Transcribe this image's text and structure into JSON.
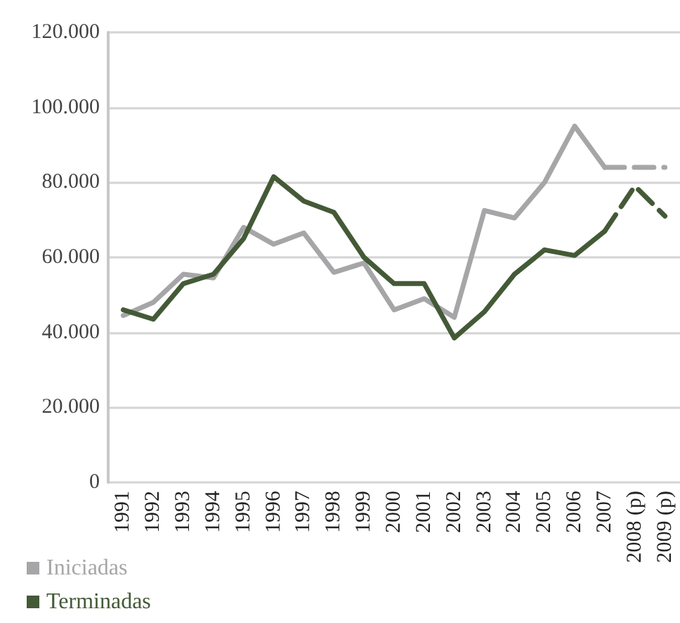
{
  "chart_data": {
    "type": "line",
    "categories": [
      "1991",
      "1992",
      "1993",
      "1994",
      "1995",
      "1996",
      "1997",
      "1998",
      "1999",
      "2000",
      "2001",
      "2002",
      "2003",
      "2004",
      "2005",
      "2006",
      "2007",
      "2008 (p)",
      "2009 (p)"
    ],
    "series": [
      {
        "name": "Iniciadas",
        "color": "#a6a6a8",
        "line_style": "solid",
        "values": [
          44500,
          48000,
          55500,
          54500,
          68000,
          63500,
          66500,
          56000,
          58500,
          46000,
          49000,
          44000,
          72500,
          70500,
          80000,
          95000,
          84000,
          null,
          null
        ]
      },
      {
        "name": "Terminadas",
        "color": "#445a37",
        "line_style": "solid",
        "values": [
          46000,
          43500,
          53000,
          55500,
          65000,
          81500,
          75000,
          72000,
          60000,
          53000,
          53000,
          38500,
          45500,
          55500,
          62000,
          60500,
          67000,
          null,
          null
        ]
      },
      {
        "color": "#a6a6a8",
        "line_style": "dashed",
        "values": [
          null,
          null,
          null,
          null,
          null,
          null,
          null,
          null,
          null,
          null,
          null,
          null,
          null,
          null,
          null,
          null,
          84000,
          84000,
          84000
        ]
      },
      {
        "color": "#445a37",
        "line_style": "dashed",
        "values": [
          null,
          null,
          null,
          null,
          null,
          null,
          null,
          null,
          null,
          null,
          null,
          null,
          null,
          null,
          null,
          null,
          67000,
          79000,
          71000
        ]
      }
    ],
    "ylim": [
      0,
      120000
    ],
    "yticks": [
      {
        "value": 0,
        "label": "0"
      },
      {
        "value": 20000,
        "label": "20.000"
      },
      {
        "value": 40000,
        "label": "40.000"
      },
      {
        "value": 60000,
        "label": "60.000"
      },
      {
        "value": 80000,
        "label": "80.000"
      },
      {
        "value": 100000,
        "label": "100.000"
      },
      {
        "value": 120000,
        "label": "120.000"
      }
    ],
    "grid": "y",
    "legend": "bottom left",
    "marker": "none"
  }
}
